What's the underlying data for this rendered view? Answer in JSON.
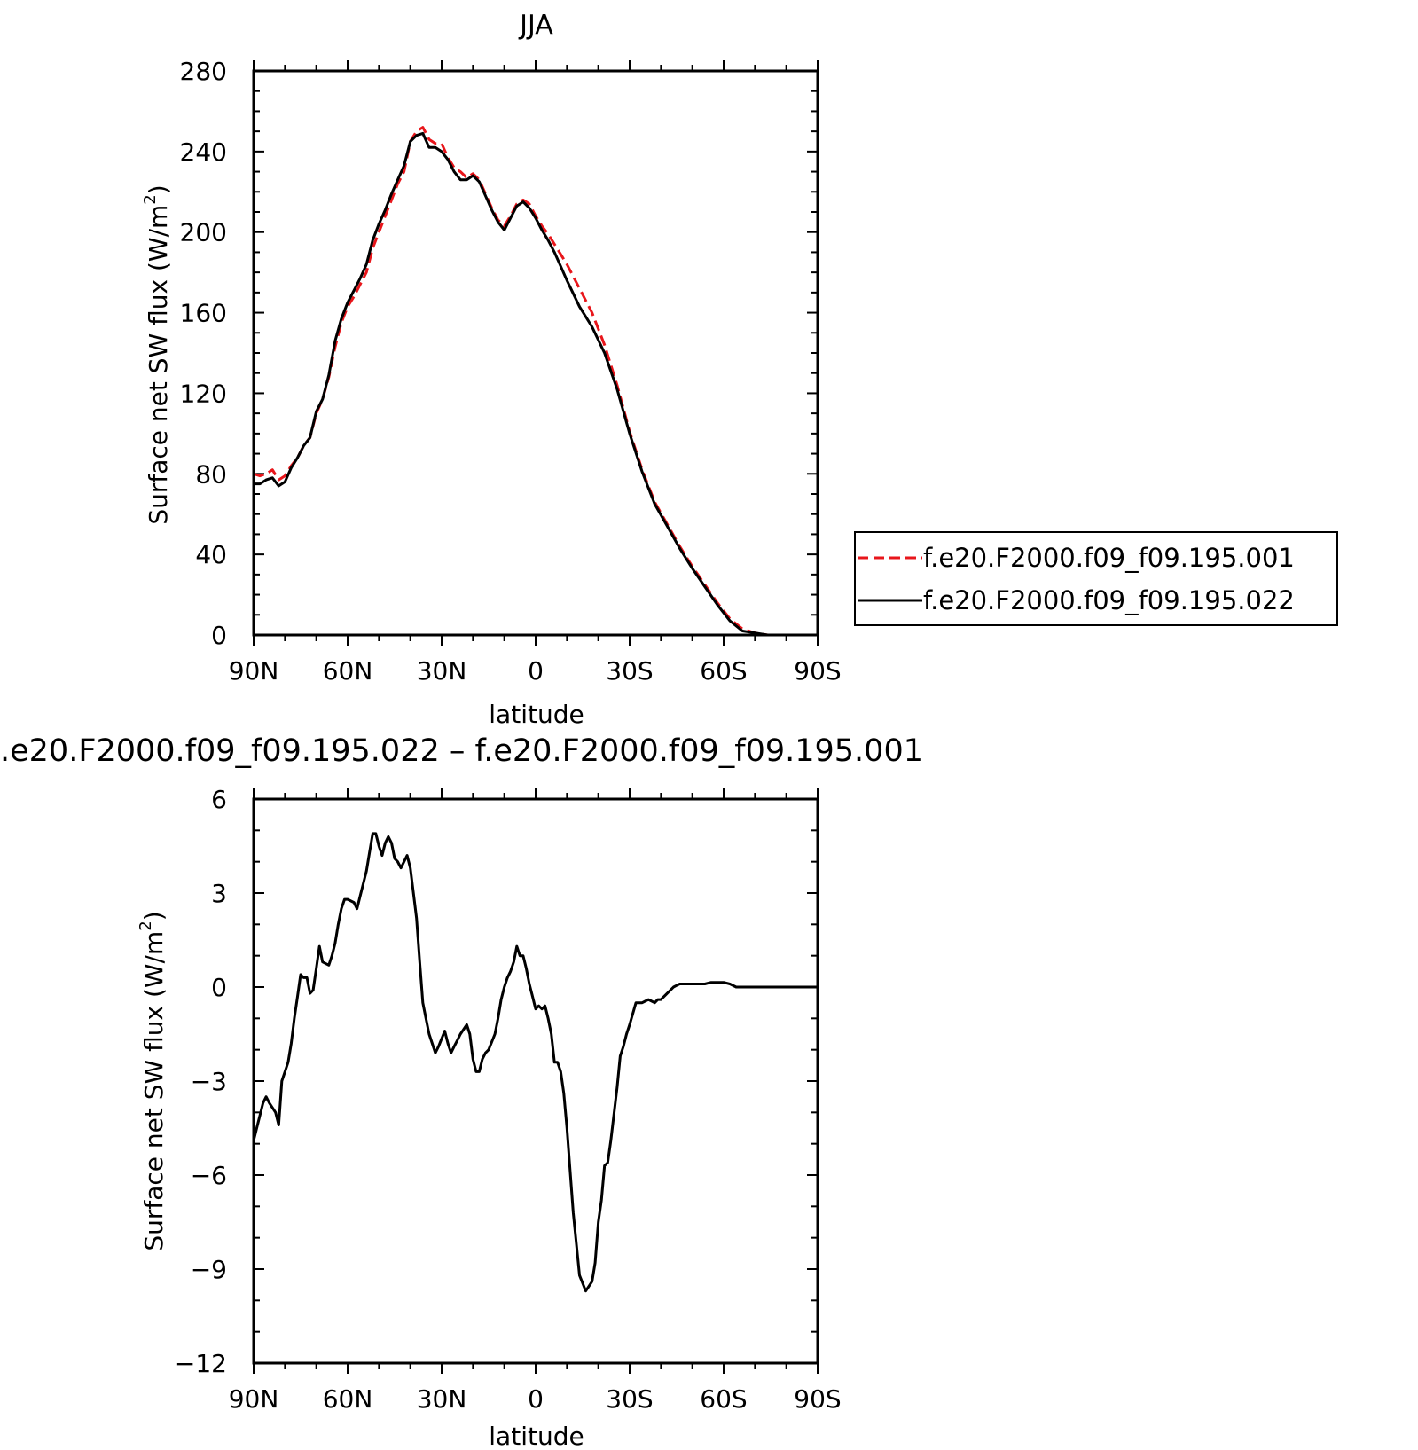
{
  "chart_data": [
    {
      "type": "line",
      "title": "JJA",
      "xlabel": "latitude",
      "ylabel": "Surface net SW flux (W/m²)",
      "ylabel_main": "Surface net SW flux (W/m",
      "ylabel_sup": "2",
      "ylabel_end": ")",
      "xlim": [
        90,
        -90
      ],
      "ylim": [
        0,
        280
      ],
      "xticks": [
        90,
        60,
        30,
        0,
        -30,
        -60,
        -90
      ],
      "xtick_labels": [
        "90N",
        "60N",
        "30N",
        "0",
        "30S",
        "60S",
        "90S"
      ],
      "yticks": [
        0,
        40,
        80,
        120,
        160,
        200,
        240,
        280
      ],
      "ytick_labels": [
        "0",
        "40",
        "80",
        "120",
        "160",
        "200",
        "240",
        "280"
      ],
      "grid": false,
      "legend_position": "right",
      "series": [
        {
          "name": "f.e20.F2000.f09_f09.195.001",
          "color": "#e8161b",
          "dash": "dashed",
          "x": [
            90,
            88,
            86,
            84,
            82,
            80,
            78,
            76,
            74,
            72,
            70,
            68,
            66,
            64,
            62,
            60,
            58,
            56,
            54,
            52,
            50,
            48,
            46,
            44,
            42,
            40,
            38,
            36,
            34,
            32,
            30,
            28,
            26,
            24,
            22,
            20,
            18,
            16,
            14,
            12,
            10,
            8,
            6,
            4,
            2,
            0,
            -2,
            -4,
            -6,
            -8,
            -10,
            -14,
            -18,
            -22,
            -26,
            -30,
            -34,
            -38,
            -42,
            -46,
            -50,
            -54,
            -58,
            -62,
            -66,
            -70,
            -74,
            -78,
            -82,
            -86,
            -90
          ],
          "y": [
            80,
            79,
            80,
            82,
            77,
            79,
            84,
            88,
            94,
            98,
            110,
            117,
            128,
            143,
            155,
            163,
            168,
            174,
            180,
            192,
            200,
            208,
            216,
            224,
            230,
            245,
            250,
            252,
            246,
            244,
            244,
            237,
            232,
            230,
            227,
            229,
            226,
            219,
            212,
            206,
            203,
            208,
            214,
            216,
            214,
            208,
            203,
            199,
            194,
            189,
            184,
            172,
            160,
            144,
            124,
            101,
            82,
            66,
            55,
            44,
            34,
            25,
            16,
            8,
            3,
            1,
            0,
            0,
            0,
            0,
            0
          ]
        },
        {
          "name": "f.e20.F2000.f09_f09.195.022",
          "color": "#000000",
          "dash": "solid",
          "x": [
            90,
            88,
            86,
            84,
            82,
            80,
            78,
            76,
            74,
            72,
            70,
            68,
            66,
            64,
            62,
            60,
            58,
            56,
            54,
            52,
            50,
            48,
            46,
            44,
            42,
            40,
            38,
            36,
            34,
            32,
            30,
            28,
            26,
            24,
            22,
            20,
            18,
            16,
            14,
            12,
            10,
            8,
            6,
            4,
            2,
            0,
            -2,
            -4,
            -6,
            -8,
            -10,
            -14,
            -18,
            -22,
            -26,
            -30,
            -34,
            -38,
            -42,
            -46,
            -50,
            -54,
            -58,
            -62,
            -66,
            -70,
            -74,
            -78,
            -82,
            -86,
            -90
          ],
          "y": [
            75,
            75,
            77,
            78,
            74,
            76,
            83,
            88,
            94,
            98,
            111,
            117,
            129,
            146,
            157,
            165,
            171,
            177,
            184,
            196,
            204,
            211,
            219,
            226,
            233,
            245,
            248,
            249,
            242,
            242,
            240,
            236,
            230,
            226,
            226,
            228,
            225,
            218,
            211,
            205,
            201,
            207,
            213,
            215,
            212,
            207,
            201,
            196,
            190,
            183,
            176,
            163,
            153,
            140,
            122,
            100,
            81,
            65,
            54,
            43,
            33,
            24,
            15,
            7,
            2,
            1,
            0,
            0,
            0,
            0,
            0
          ]
        }
      ]
    },
    {
      "type": "line",
      "title": ".e20.F2000.f09_f09.195.022 – f.e20.F2000.f09_f09.195.001",
      "xlabel": "latitude",
      "ylabel": "Surface net SW flux (W/m²)",
      "ylabel_main": "Surface net SW flux (W/m",
      "ylabel_sup": "2",
      "ylabel_end": ")",
      "xlim": [
        90,
        -90
      ],
      "ylim": [
        -12,
        6
      ],
      "xticks": [
        90,
        60,
        30,
        0,
        -30,
        -60,
        -90
      ],
      "xtick_labels": [
        "90N",
        "60N",
        "30N",
        "0",
        "30S",
        "60S",
        "90S"
      ],
      "yticks": [
        -12,
        -9,
        -6,
        -3,
        0,
        3,
        6
      ],
      "ytick_labels": [
        "−12",
        "−9",
        "−6",
        "−3",
        "0",
        "3",
        "6"
      ],
      "grid": false,
      "series": [
        {
          "color": "#000000",
          "dash": "solid",
          "x": [
            90,
            89,
            87,
            86,
            85,
            83,
            82,
            81,
            79,
            78,
            77,
            76,
            75,
            74,
            73,
            72,
            71,
            70,
            69,
            68,
            66,
            65,
            64,
            63,
            62,
            61,
            60,
            58,
            57,
            56,
            54,
            53,
            52,
            51,
            50,
            49,
            48,
            47,
            46,
            45,
            44,
            43,
            41,
            40,
            39,
            38,
            37,
            36,
            35,
            34,
            33,
            32,
            31,
            29,
            28,
            27,
            26,
            25,
            24,
            22,
            21,
            20,
            19,
            18,
            17,
            16,
            15,
            13,
            12,
            11,
            10,
            9,
            8,
            7,
            6,
            5,
            4,
            3,
            2,
            1,
            0,
            -1,
            -2,
            -3,
            -4,
            -5,
            -6,
            -7,
            -8,
            -9,
            -10,
            -12,
            -14,
            -16,
            -18,
            -19,
            -20,
            -21,
            -22,
            -23,
            -24,
            -26,
            -27,
            -28,
            -29,
            -30,
            -32,
            -34,
            -36,
            -38,
            -39,
            -40,
            -42,
            -44,
            -45,
            -46,
            -48,
            -50,
            -52,
            -54,
            -56,
            -58,
            -60,
            -62,
            -64,
            -66,
            -68,
            -70,
            -75,
            -80,
            -85,
            -90
          ],
          "y": [
            -4.9,
            -4.5,
            -3.7,
            -3.5,
            -3.7,
            -4.0,
            -4.4,
            -3.0,
            -2.4,
            -1.8,
            -1.0,
            -0.3,
            0.4,
            0.3,
            0.3,
            -0.2,
            -0.1,
            0.6,
            1.3,
            0.8,
            0.7,
            1.0,
            1.4,
            2.0,
            2.5,
            2.8,
            2.8,
            2.7,
            2.5,
            2.9,
            3.7,
            4.3,
            4.9,
            4.9,
            4.5,
            4.2,
            4.6,
            4.8,
            4.6,
            4.1,
            4.0,
            3.8,
            4.2,
            3.8,
            3.0,
            2.2,
            0.8,
            -0.5,
            -1.0,
            -1.5,
            -1.8,
            -2.1,
            -1.9,
            -1.4,
            -1.8,
            -2.1,
            -1.9,
            -1.7,
            -1.5,
            -1.2,
            -1.5,
            -2.3,
            -2.7,
            -2.7,
            -2.3,
            -2.1,
            -2.0,
            -1.5,
            -1.0,
            -0.4,
            0.0,
            0.3,
            0.5,
            0.8,
            1.3,
            1.0,
            1.0,
            0.6,
            0.1,
            -0.3,
            -0.7,
            -0.6,
            -0.7,
            -0.6,
            -1.0,
            -1.5,
            -2.4,
            -2.4,
            -2.7,
            -3.4,
            -4.5,
            -7.2,
            -9.2,
            -9.7,
            -9.4,
            -8.8,
            -7.5,
            -6.8,
            -5.7,
            -5.6,
            -4.9,
            -3.2,
            -2.2,
            -1.9,
            -1.5,
            -1.2,
            -0.5,
            -0.5,
            -0.4,
            -0.5,
            -0.4,
            -0.4,
            -0.2,
            0.0,
            0.05,
            0.1,
            0.1,
            0.1,
            0.1,
            0.1,
            0.15,
            0.15,
            0.15,
            0.1,
            0.0,
            0.0,
            0.0,
            0.0,
            0.0,
            0.0,
            0.0,
            0.0
          ]
        }
      ]
    }
  ]
}
